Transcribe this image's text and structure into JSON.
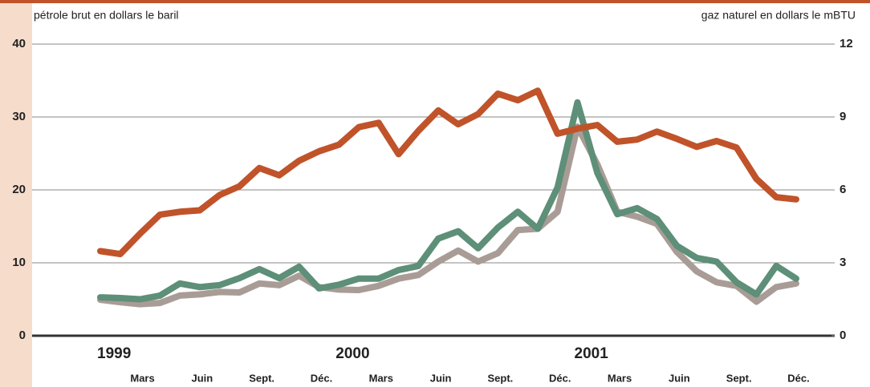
{
  "chart_data": {
    "type": "line",
    "ylabel": "pétrole brut en dollars le baril",
    "y2label": "gaz naturel en dollars le mBTU",
    "categories": [
      null,
      null,
      "Mars",
      null,
      null,
      "Juin",
      null,
      null,
      "Sept.",
      null,
      null,
      "Déc.",
      null,
      null,
      "Mars",
      null,
      null,
      "Juin",
      null,
      null,
      "Sept.",
      null,
      null,
      "Déc.",
      null,
      null,
      "Mars",
      null,
      null,
      "Juin",
      null,
      null,
      "Sept.",
      null,
      null,
      "Déc."
    ],
    "year_categories": [
      "1999",
      null,
      null,
      null,
      null,
      null,
      null,
      null,
      null,
      null,
      null,
      null,
      "2000",
      null,
      null,
      null,
      null,
      null,
      null,
      null,
      null,
      null,
      null,
      null,
      "2001",
      null,
      null,
      null,
      null,
      null,
      null,
      null,
      null,
      null,
      null,
      null
    ],
    "series": [
      {
        "color": "#a99c96",
        "axis": "y2",
        "values": [
          1.48,
          1.38,
          1.3,
          1.35,
          1.65,
          1.7,
          1.8,
          1.78,
          2.15,
          2.08,
          2.47,
          2.0,
          1.9,
          1.88,
          2.05,
          2.35,
          2.5,
          3.05,
          3.5,
          3.05,
          3.4,
          4.35,
          4.4,
          5.1,
          8.6,
          7.05,
          5.1,
          4.9,
          4.6,
          3.45,
          2.65,
          2.2,
          2.05,
          1.4,
          2.0,
          2.15
        ]
      },
      {
        "color": "#5e8f78",
        "axis": "y2",
        "values": [
          1.58,
          1.55,
          1.5,
          1.65,
          2.15,
          2.0,
          2.08,
          2.37,
          2.74,
          2.37,
          2.84,
          1.95,
          2.1,
          2.35,
          2.35,
          2.7,
          2.87,
          4.0,
          4.3,
          3.6,
          4.45,
          5.1,
          4.4,
          6.1,
          9.6,
          6.7,
          5.0,
          5.25,
          4.8,
          3.7,
          3.2,
          3.05,
          2.2,
          1.7,
          2.87,
          2.35
        ]
      },
      {
        "color": "#c0532a",
        "values": [
          11.6,
          11.2,
          14,
          16.6,
          17,
          17.2,
          19.3,
          20.5,
          23,
          22,
          24,
          25.3,
          26.2,
          28.6,
          29.2,
          24.9,
          28.1,
          30.9,
          29,
          30.4,
          33.2,
          32.3,
          33.6,
          27.7,
          28.4,
          28.9,
          26.6,
          26.9,
          28,
          27,
          25.9,
          26.7,
          25.8,
          21.5,
          19,
          18.7
        ]
      }
    ],
    "ylim": [
      0,
      40
    ],
    "yticks": [
      0,
      10,
      20,
      30,
      40
    ],
    "y2lim": [
      0,
      12
    ],
    "y2ticks": [
      0,
      3,
      6,
      9,
      12
    ],
    "grid": true
  }
}
